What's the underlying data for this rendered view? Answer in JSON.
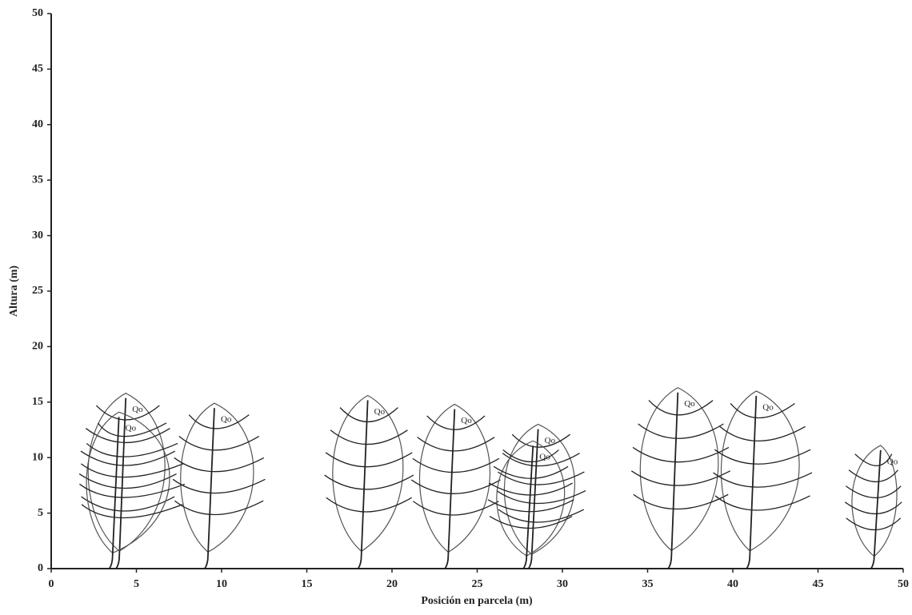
{
  "chart_data": {
    "type": "tree-profile",
    "x_label": "Posición en parcela (m)",
    "y_label": "Altura (m)",
    "xlim": [
      0,
      50
    ],
    "ylim": [
      0,
      50
    ],
    "xticks": [
      0,
      5,
      10,
      15,
      20,
      25,
      30,
      35,
      40,
      45,
      50
    ],
    "yticks": [
      0,
      5,
      10,
      15,
      20,
      25,
      30,
      35,
      40,
      45,
      50
    ],
    "color": "#222222",
    "trees": [
      {
        "label": "Qo",
        "x": 4.0,
        "height": 15.8,
        "crown": [
          1.5,
          7.5
        ]
      },
      {
        "label": "Qo",
        "x": 3.6,
        "height": 14.1,
        "crown": [
          1.5,
          8.0
        ]
      },
      {
        "label": "Qo",
        "x": 9.2,
        "height": 14.9,
        "crown": [
          7.0,
          12.7
        ]
      },
      {
        "label": "Qo",
        "x": 18.2,
        "height": 15.6,
        "crown": [
          15.9,
          21.4
        ]
      },
      {
        "label": "Qo",
        "x": 23.3,
        "height": 14.8,
        "crown": [
          21.0,
          26.5
        ]
      },
      {
        "label": "Qo",
        "x": 28.2,
        "height": 13.0,
        "crown": [
          26.0,
          31.5
        ]
      },
      {
        "label": "Qo",
        "x": 27.9,
        "height": 11.5,
        "crown": [
          25.5,
          30.8
        ]
      },
      {
        "label": "Qo",
        "x": 36.4,
        "height": 16.3,
        "crown": [
          33.9,
          40.0
        ]
      },
      {
        "label": "Qo",
        "x": 41.0,
        "height": 16.0,
        "crown": [
          38.7,
          44.8
        ]
      },
      {
        "label": "Qo",
        "x": 48.3,
        "height": 11.1,
        "crown": [
          46.5,
          50.0
        ]
      }
    ]
  }
}
